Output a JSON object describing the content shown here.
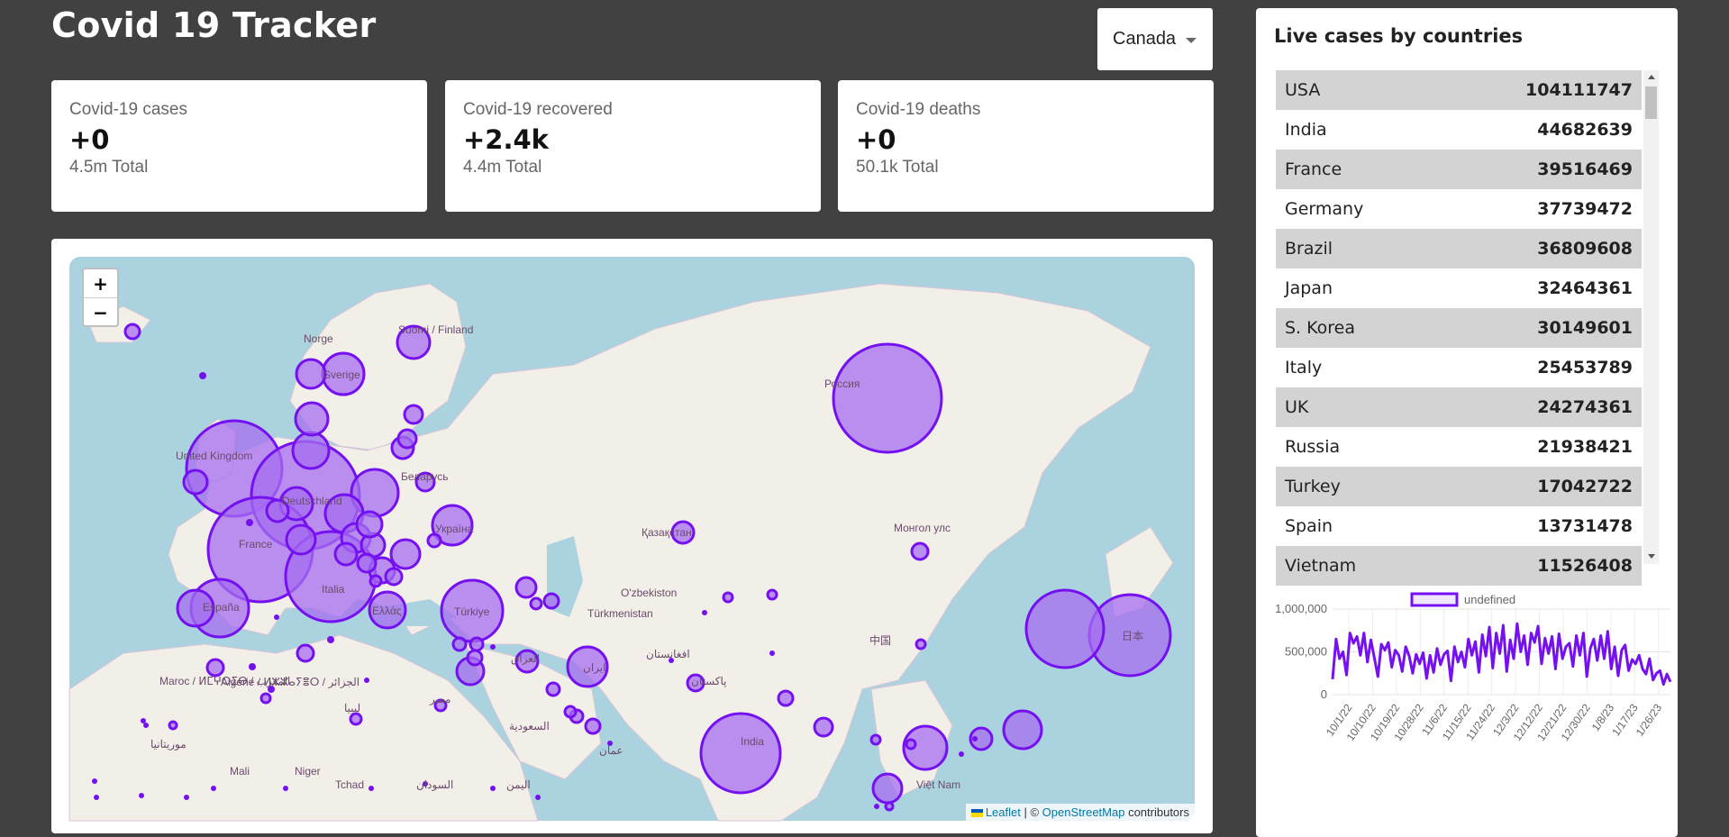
{
  "app": {
    "title": "Covid 19 Tracker"
  },
  "country_select": {
    "selected": "Canada"
  },
  "cards": [
    {
      "title": "Covid-19 cases",
      "value": "+0",
      "total": "4.5m Total"
    },
    {
      "title": "Covid-19 recovered",
      "value": "+2.4k",
      "total": "4.4m Total"
    },
    {
      "title": "Covid-19 deaths",
      "value": "+0",
      "total": "50.1k Total"
    }
  ],
  "map": {
    "zoom_in": "+",
    "zoom_out": "−",
    "attribution": {
      "leaflet": "Leaflet",
      "sep": " | © ",
      "osm": "OpenStreetMap",
      "contributors": " contributors"
    },
    "labels": [
      "United Kingdom",
      "Norge",
      "Sverige",
      "Suomi / Finland",
      "Беларусь",
      "Україна",
      "Deutschland",
      "France",
      "España",
      "Italia",
      "Ελλάς",
      "Türkiye",
      "Россия",
      "Қазақстан",
      "O'zbekiston",
      "Türkmenistan",
      "Монгол улс",
      "中国",
      "日本",
      "India",
      "Việt Nam",
      "Maroc / ⵍⵎⵖⵔⵉⴱ / المغرب",
      "Algérie / ⵍⵣⵣⴰⵢⴻⵔ / الجزائر",
      "Mali",
      "Niger",
      "Tchad",
      "السودان",
      "ليبيا",
      "مصر",
      "العراق",
      "ایران",
      "افغانستان",
      "پاکستان",
      "السعودية",
      "اليمن",
      "موريتانيا",
      "عمان"
    ]
  },
  "sidebar": {
    "title": "Live cases by countries",
    "rows": [
      {
        "country": "USA",
        "cases": "104111747"
      },
      {
        "country": "India",
        "cases": "44682639"
      },
      {
        "country": "France",
        "cases": "39516469"
      },
      {
        "country": "Germany",
        "cases": "37739472"
      },
      {
        "country": "Brazil",
        "cases": "36809608"
      },
      {
        "country": "Japan",
        "cases": "32464361"
      },
      {
        "country": "S. Korea",
        "cases": "30149601"
      },
      {
        "country": "Italy",
        "cases": "25453789"
      },
      {
        "country": "UK",
        "cases": "24274361"
      },
      {
        "country": "Russia",
        "cases": "21938421"
      },
      {
        "country": "Turkey",
        "cases": "17042722"
      },
      {
        "country": "Spain",
        "cases": "13731478"
      },
      {
        "country": "Vietnam",
        "cases": "11526408"
      }
    ]
  },
  "colors": {
    "background": "#414141",
    "accent": "#7511f0",
    "bubble_fill": "#a66ef0",
    "row_alt": "#d3d3d3"
  },
  "chart_data": {
    "type": "line",
    "series": [
      {
        "name": "undefined",
        "values": [
          180000,
          650000,
          420000,
          500000,
          230000,
          720000,
          600000,
          680000,
          460000,
          720000,
          380000,
          640000,
          430000,
          210000,
          590000,
          520000,
          610000,
          320000,
          520000,
          460000,
          270000,
          560000,
          450000,
          250000,
          470000,
          360000,
          490000,
          190000,
          460000,
          260000,
          540000,
          350000,
          470000,
          510000,
          160000,
          560000,
          380000,
          500000,
          320000,
          650000,
          460000,
          620000,
          260000,
          700000,
          450000,
          790000,
          310000,
          720000,
          480000,
          810000,
          270000,
          640000,
          420000,
          830000,
          500000,
          690000,
          350000,
          720000,
          610000,
          800000,
          360000,
          660000,
          480000,
          680000,
          300000,
          710000,
          420000,
          560000,
          600000,
          330000,
          690000,
          460000,
          720000,
          210000,
          540000,
          650000,
          400000,
          690000,
          420000,
          740000,
          300000,
          560000,
          220000,
          520000,
          580000,
          280000,
          410000,
          360000,
          460000,
          300000,
          240000,
          420000,
          170000,
          250000,
          280000,
          120000,
          240000,
          150000
        ]
      }
    ],
    "x_tick_labels": [
      "10/1/22",
      "10/10/22",
      "10/19/22",
      "10/28/22",
      "11/6/22",
      "11/15/22",
      "11/24/22",
      "12/3/22",
      "12/12/22",
      "12/21/22",
      "12/30/22",
      "1/8/23",
      "1/17/23",
      "1/26/23"
    ],
    "y_tick_labels": [
      "1,000,000",
      "500,000",
      "0"
    ],
    "ylim": [
      0,
      1000000
    ],
    "legend": {
      "label": "undefined",
      "position": "top"
    },
    "grid": true
  }
}
